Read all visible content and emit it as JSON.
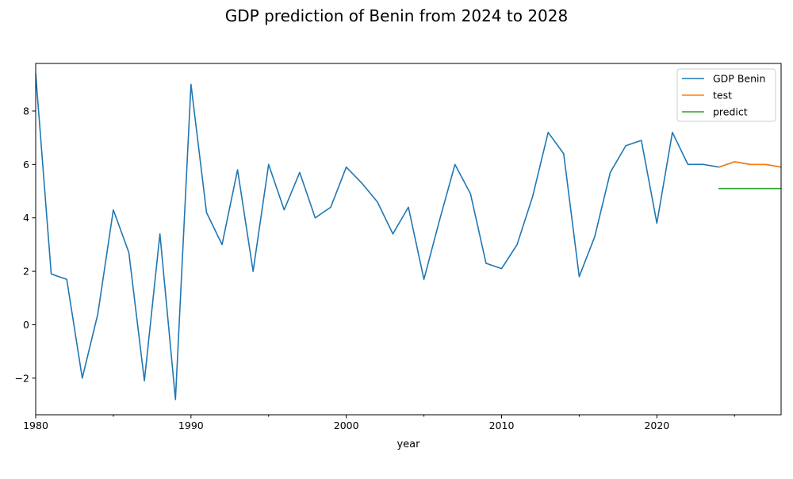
{
  "chart_data": {
    "type": "line",
    "title": "GDP prediction of Benin from 2024 to 2028",
    "xlabel": "year",
    "ylabel": "",
    "xlim": [
      1980,
      2028
    ],
    "ylim": [
      -3.37,
      9.78
    ],
    "xticks": [
      1980,
      1990,
      2000,
      2010,
      2020
    ],
    "xtick_labels": [
      "1980",
      "1990",
      "2000",
      "2010",
      "2020"
    ],
    "xminor_ticks": [
      1985,
      1995,
      2005,
      2015,
      2025
    ],
    "yticks": [
      -2,
      0,
      2,
      4,
      6,
      8
    ],
    "ytick_labels": [
      "−2",
      "0",
      "2",
      "4",
      "6",
      "8"
    ],
    "grid": false,
    "legend_position": "upper right",
    "series": [
      {
        "name": "GDP Benin",
        "color": "#1f77b4",
        "x": [
          1980,
          1981,
          1982,
          1983,
          1984,
          1985,
          1986,
          1987,
          1988,
          1989,
          1990,
          1991,
          1992,
          1993,
          1994,
          1995,
          1996,
          1997,
          1998,
          1999,
          2000,
          2001,
          2002,
          2003,
          2004,
          2005,
          2006,
          2007,
          2008,
          2009,
          2010,
          2011,
          2012,
          2013,
          2014,
          2015,
          2016,
          2017,
          2018,
          2019,
          2020,
          2021,
          2022,
          2023,
          2024,
          2025,
          2026,
          2027,
          2028
        ],
        "values": [
          9.4,
          1.9,
          1.7,
          -2.0,
          0.4,
          4.3,
          2.7,
          -2.1,
          3.4,
          -2.8,
          9.0,
          4.2,
          3.0,
          5.8,
          2.0,
          6.0,
          4.3,
          5.7,
          4.0,
          4.4,
          5.9,
          5.3,
          4.6,
          3.4,
          4.4,
          1.7,
          3.9,
          6.0,
          4.9,
          2.3,
          2.1,
          3.0,
          4.8,
          7.2,
          6.4,
          1.8,
          3.3,
          5.7,
          6.7,
          6.9,
          3.8,
          7.2,
          6.0,
          6.0,
          5.9,
          6.1,
          6.0,
          6.0,
          5.9
        ]
      },
      {
        "name": "test",
        "color": "#ff7f0e",
        "x": [
          2024,
          2025,
          2026,
          2027,
          2028
        ],
        "values": [
          5.9,
          6.1,
          6.0,
          6.0,
          5.9
        ]
      },
      {
        "name": "predict",
        "color": "#2ca02c",
        "x": [
          2024,
          2025,
          2026,
          2027,
          2028
        ],
        "values": [
          5.1,
          5.1,
          5.1,
          5.1,
          5.1
        ]
      }
    ]
  }
}
